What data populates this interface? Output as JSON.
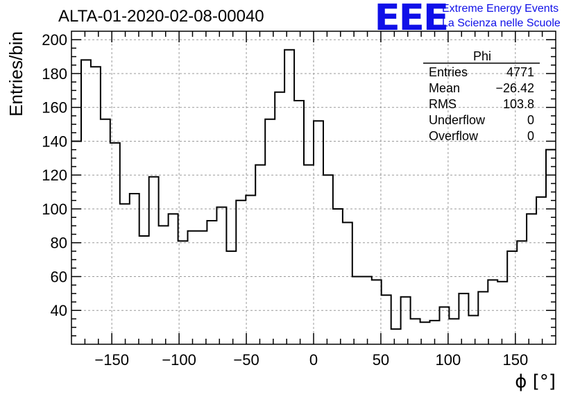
{
  "header": {
    "title": "ALTA-01-2020-02-08-00040",
    "logo_text": "EEE",
    "logo_line1": "Extreme Energy Events",
    "logo_line2": "La Scienza nelle Scuole",
    "logo_color": "#1010e8"
  },
  "stats_box": {
    "name": "Phi",
    "rows": [
      {
        "label": "Entries",
        "value": "4771"
      },
      {
        "label": "Mean",
        "value": "−26.42"
      },
      {
        "label": "RMS",
        "value": "103.8"
      },
      {
        "label": "Underflow",
        "value": "0"
      },
      {
        "label": "Overflow",
        "value": "0"
      }
    ]
  },
  "chart_data": {
    "type": "histogram",
    "title": "ALTA-01-2020-02-08-00040",
    "xlabel": "ϕ [°]",
    "ylabel": "Entries/bin",
    "xlim": [
      -180,
      180
    ],
    "ylim": [
      20,
      205
    ],
    "bin_width": 7.2,
    "x_ticks": [
      -150,
      -100,
      -50,
      0,
      50,
      100,
      150
    ],
    "x_tick_labels": [
      "−150",
      "−100",
      "−50",
      "0",
      "50",
      "100",
      "150"
    ],
    "y_ticks": [
      40,
      60,
      80,
      100,
      120,
      140,
      160,
      180,
      200
    ],
    "y_tick_labels": [
      "40",
      "60",
      "80",
      "100",
      "120",
      "140",
      "160",
      "180",
      "200"
    ],
    "grid": true,
    "line_color": "#000000",
    "values": [
      140,
      188,
      184,
      153,
      139,
      103,
      109,
      84,
      119,
      90,
      97,
      81,
      87,
      87,
      93,
      101,
      75,
      105,
      108,
      126,
      153,
      169,
      194,
      164,
      126,
      152,
      120,
      100,
      92,
      60,
      60,
      58,
      49,
      29,
      48,
      35,
      33,
      34,
      42,
      35,
      50,
      37,
      51,
      58,
      57,
      75,
      81,
      97,
      107,
      135
    ]
  }
}
